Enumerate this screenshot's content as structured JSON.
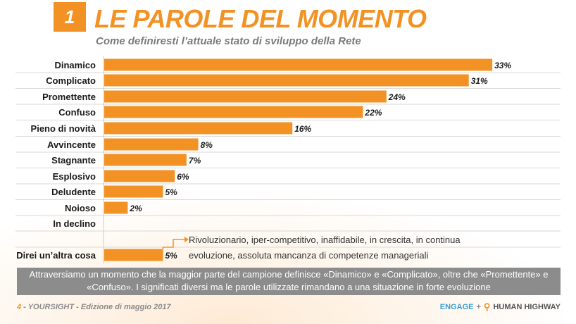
{
  "header": {
    "number": "1",
    "title": "LE PAROLE DEL MOMENTO",
    "subtitle": "Come definiresti l’attuale stato di sviluppo della Rete"
  },
  "chart_data": {
    "type": "bar",
    "orientation": "horizontal",
    "categories": [
      "Dinamico",
      "Complicato",
      "Promettente",
      "Confuso",
      "Pieno di novità",
      "Avvincente",
      "Stagnante",
      "Esplosivo",
      "Deludente",
      "Noioso",
      "In declino",
      "Direi un’altra cosa"
    ],
    "values": [
      33,
      31,
      24,
      22,
      16,
      8,
      7,
      6,
      5,
      2,
      0,
      5
    ],
    "data_labels": [
      "33%",
      "31%",
      "24%",
      "22%",
      "16%",
      "8%",
      "7%",
      "6%",
      "5%",
      "2%",
      "",
      "5%"
    ],
    "unit": "%",
    "bar_color": "#f39224",
    "grid": false
  },
  "callout_text": "Rivoluzionario, iper-competitivo, inaffidabile, in crescita, in continua evoluzione, assoluta mancanza di competenze manageriali",
  "summary_text": "Attraversiamo un momento che la maggior parte del campione definisce «Dinamico» e «Complicato», oltre che «Promettente» e «Confuso». I significati diversi ma le parole utilizzate rimandano a una situazione in forte evoluzione",
  "footer": {
    "page_number": "4",
    "source_text": " - YOURSIGHT - Edizione di maggio 2017",
    "logo_engage": "ENGAGE",
    "logo_plus": "+",
    "logo_human_highway": "HUMAN HIGHWAY"
  },
  "colors": {
    "accent": "#f39224",
    "summary_bg": "#8c8c8c",
    "subtitle": "#7a7a7a"
  }
}
